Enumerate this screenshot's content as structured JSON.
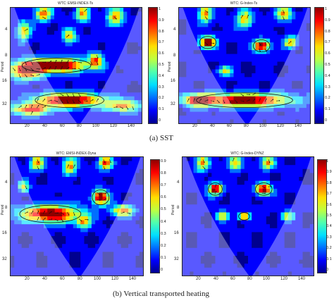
{
  "colors": {
    "cmap": [
      "#00008f",
      "#0000ff",
      "#006fff",
      "#00dfff",
      "#4fffaf",
      "#bfff40",
      "#ffdf00",
      "#ff6f00",
      "#ff0000",
      "#8f0000"
    ]
  },
  "captions": {
    "a": "(a)   SST",
    "b": "(b) Vertical transported heating"
  },
  "chart_data": [
    {
      "type": "heatmap",
      "panel": "a-left",
      "title": "WTC: EMSI-INDEX-Ts",
      "ylabel": "Period",
      "x_ticks": [
        "20",
        "40",
        "60",
        "80",
        "100",
        "120",
        "140"
      ],
      "y_ticks": [
        "4",
        "8",
        "16",
        "32"
      ],
      "xlim": [
        1,
        150
      ],
      "colorbar_ticks": [
        "1",
        "0.9",
        "0.8",
        "0.7",
        "0.6",
        "0.5",
        "0.4",
        "0.3",
        "0.2",
        "0.1",
        "0"
      ],
      "arrows": true
    },
    {
      "type": "heatmap",
      "panel": "a-right",
      "title": "WTC: G-Index-Ts",
      "ylabel": "Period",
      "x_ticks": [
        "20",
        "40",
        "60",
        "80",
        "100",
        "120",
        "140"
      ],
      "y_ticks": [
        "4",
        "8",
        "16",
        "32"
      ],
      "xlim": [
        1,
        150
      ],
      "colorbar_ticks": [
        "1",
        "0.9",
        "0.8",
        "0.7",
        "0.6",
        "0.5",
        "0.4",
        "0.3",
        "0.2",
        "0.1",
        "0"
      ],
      "arrows": true
    },
    {
      "type": "heatmap",
      "panel": "b-left",
      "title": "WTC: EMSI-INDEX-Dyna",
      "ylabel": "Period",
      "x_ticks": [
        "20",
        "40",
        "60",
        "80",
        "100",
        "120",
        "140"
      ],
      "y_ticks": [
        "4",
        "8",
        "16",
        "32"
      ],
      "xlim": [
        1,
        150
      ],
      "colorbar_ticks": [
        "0.9",
        "0.8",
        "0.7",
        "0.6",
        "0.5",
        "0.4",
        "0.3",
        "0.2",
        "0.1",
        "0"
      ],
      "arrows": true
    },
    {
      "type": "heatmap",
      "panel": "b-right",
      "title": "WTC: G-Index-DYNZ",
      "ylabel": "Period",
      "x_ticks": [
        "20",
        "40",
        "60",
        "80",
        "100",
        "120",
        "140"
      ],
      "y_ticks": [
        "4",
        "8",
        "16",
        "32"
      ],
      "xlim": [
        1,
        150
      ],
      "colorbar_ticks": [
        "1",
        "0.9",
        "0.8",
        "0.7",
        "0.6",
        "0.5",
        "0.4",
        "0.3",
        "0.2",
        "0.1",
        "0"
      ],
      "arrows": true
    }
  ]
}
